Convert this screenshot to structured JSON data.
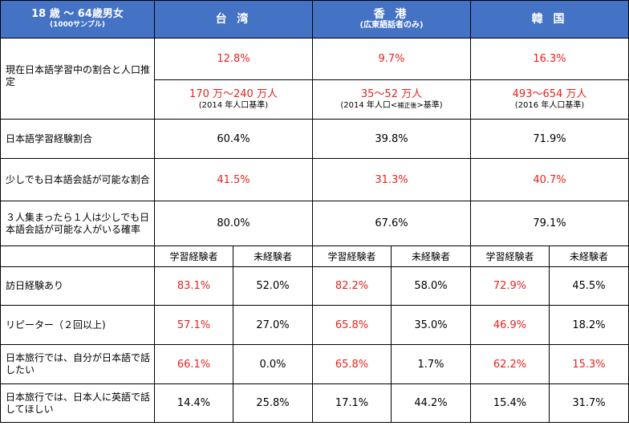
{
  "header": {
    "demographic": "18 歳 ～ 64歳男女",
    "sample": "(1000サンプル)",
    "regions": [
      {
        "name": "台 湾",
        "sub": ""
      },
      {
        "name": "香 港",
        "sub": "(広東語話者のみ)"
      },
      {
        "name": "韓 国",
        "sub": ""
      }
    ]
  },
  "learning": {
    "label": "現在日本語学習中の割合と人口推定",
    "rates": [
      "12.8%",
      "9.7%",
      "16.3%"
    ],
    "population": [
      {
        "range": "170 万～240 万人",
        "basis_prefix": "(2014 年人口基準)",
        "basis_note": "",
        "basis_suffix": ""
      },
      {
        "range": "35～52 万人",
        "basis_prefix": "(2014 年人口<",
        "basis_note": "補正後",
        "basis_suffix": ">基準)"
      },
      {
        "range": "493～654 万人",
        "basis_prefix": "(2016 年人口基準)",
        "basis_note": "",
        "basis_suffix": ""
      }
    ]
  },
  "single_rows": [
    {
      "label": "日本語学習経験割合",
      "values": [
        "60.4%",
        "39.8%",
        "71.9%"
      ]
    },
    {
      "label": "少しでも日本語会話が可能な割合",
      "values": [
        "41.5%",
        "31.3%",
        "40.7%"
      ]
    },
    {
      "label": "３人集まったら１人は少しでも日本語会話が可能な人がいる確率",
      "values": [
        "80.0%",
        "67.6%",
        "79.1%"
      ]
    }
  ],
  "subheaders": [
    "学習経験者",
    "未経験者",
    "学習経験者",
    "未経験者",
    "学習経験者",
    "未経験者"
  ],
  "split_rows": [
    {
      "label": "訪日経験あり",
      "values": [
        "83.1%",
        "52.0%",
        "82.2%",
        "58.0%",
        "72.9%",
        "45.5%"
      ]
    },
    {
      "label": "リピーター（２回以上)",
      "values": [
        "57.1%",
        "27.0%",
        "65.8%",
        "35.0%",
        "46.9%",
        "18.2%"
      ]
    },
    {
      "label": "日本旅行では、自分が日本語で話したい",
      "values": [
        "66.1%",
        "0.0%",
        "65.8%",
        "1.7%",
        "62.2%",
        "15.3%"
      ]
    },
    {
      "label": "日本旅行では、日本人に英語で話してほしい",
      "values": [
        "14.4%",
        "25.8%",
        "17.1%",
        "44.2%",
        "15.4%",
        "31.7%"
      ]
    }
  ],
  "colors": {
    "header_bg": "#4472c4",
    "highlight": "#e8231e"
  }
}
